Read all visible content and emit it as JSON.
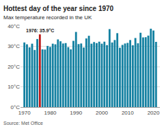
{
  "chart_data": {
    "type": "bar",
    "title": "Hottest day of the year since 1970",
    "subtitle": "Max temperature recorded in the UK",
    "source": "Source: Met Office",
    "x": [
      1970,
      1971,
      1972,
      1973,
      1974,
      1975,
      1976,
      1977,
      1978,
      1979,
      1980,
      1981,
      1982,
      1983,
      1984,
      1985,
      1986,
      1987,
      1988,
      1989,
      1990,
      1991,
      1992,
      1993,
      1994,
      1995,
      1996,
      1997,
      1998,
      1999,
      2000,
      2001,
      2002,
      2003,
      2004,
      2005,
      2006,
      2007,
      2008,
      2009,
      2010,
      2011,
      2012,
      2013,
      2014,
      2015,
      2016,
      2017,
      2018,
      2019,
      2020,
      2021
    ],
    "values": [
      31.9,
      31.0,
      29.5,
      31.3,
      28.2,
      33.6,
      35.9,
      28.5,
      28.4,
      30.2,
      29.7,
      31.3,
      31.0,
      33.4,
      32.5,
      31.4,
      31.6,
      29.6,
      28.5,
      32.7,
      37.1,
      31.1,
      31.4,
      29.4,
      33.9,
      35.2,
      31.3,
      32.1,
      31.6,
      32.3,
      31.3,
      32.3,
      30.6,
      38.5,
      31.9,
      33.1,
      36.5,
      29.3,
      30.7,
      31.4,
      31.7,
      33.1,
      30.5,
      34.1,
      31.5,
      36.7,
      34.4,
      34.5,
      35.3,
      38.7,
      37.8,
      32.2
    ],
    "colors": [
      "#1380A1",
      "#1380A1",
      "#1380A1",
      "#1380A1",
      "#1380A1",
      "#1380A1",
      "#BB1919",
      "#1380A1",
      "#1380A1",
      "#1380A1",
      "#1380A1",
      "#1380A1",
      "#1380A1",
      "#1380A1",
      "#1380A1",
      "#1380A1",
      "#1380A1",
      "#1380A1",
      "#1380A1",
      "#1380A1",
      "#1380A1",
      "#1380A1",
      "#1380A1",
      "#1380A1",
      "#1380A1",
      "#1380A1",
      "#1380A1",
      "#1380A1",
      "#1380A1",
      "#1380A1",
      "#1380A1",
      "#1380A1",
      "#1380A1",
      "#1380A1",
      "#1380A1",
      "#1380A1",
      "#1380A1",
      "#1380A1",
      "#1380A1",
      "#1380A1",
      "#1380A1",
      "#1380A1",
      "#1380A1",
      "#1380A1",
      "#1380A1",
      "#1380A1",
      "#1380A1",
      "#1380A1",
      "#1380A1",
      "#1380A1",
      "#1380A1",
      "#1380A1"
    ],
    "xlim": [
      1968.5,
      2022.5
    ],
    "xticks": [
      1970,
      1980,
      1990,
      2000,
      2010,
      2020
    ],
    "ylim": [
      0,
      40
    ],
    "yticks": [
      {
        "value": 0,
        "label": "0°C"
      },
      {
        "value": 10,
        "label": "10°C"
      },
      {
        "value": 20,
        "label": "20°C"
      },
      {
        "value": 30,
        "label": "30°C"
      },
      {
        "value": 40,
        "label": "40°C"
      }
    ],
    "annotations": [
      {
        "text": "1976: 35.9°C",
        "x": 1976,
        "y": 35.9
      }
    ],
    "grid": true
  }
}
